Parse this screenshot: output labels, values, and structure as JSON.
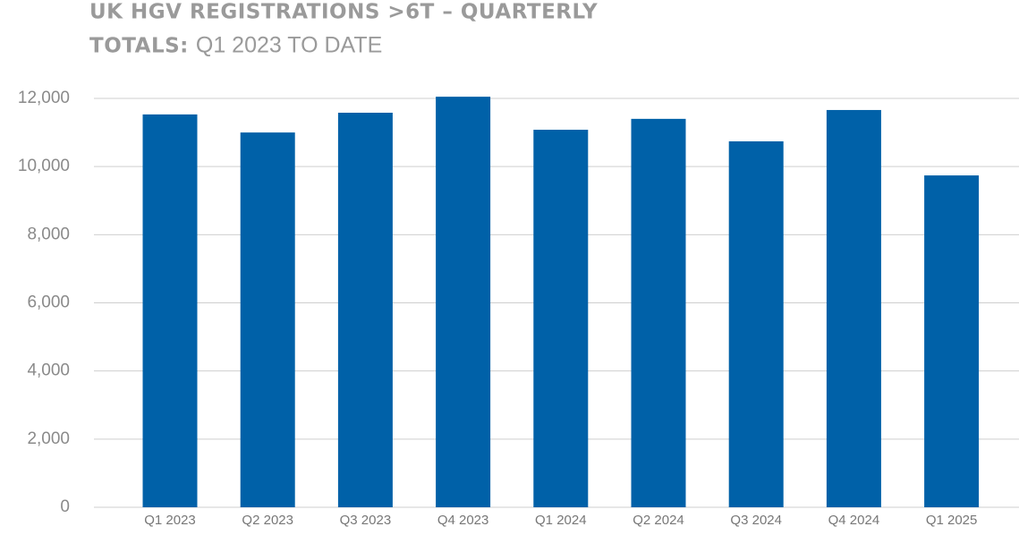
{
  "chart_data": {
    "type": "bar",
    "title": [
      "UK HGV REGISTRATIONS >6T – QUARTERLY",
      "TOTALS:",
      "Q1 2023 TO DATE"
    ],
    "categories": [
      "Q1 2023",
      "Q2 2023",
      "Q3 2023",
      "Q4 2023",
      "Q1 2024",
      "Q2 2024",
      "Q3 2024",
      "Q4 2024",
      "Q1 2025"
    ],
    "values": [
      11530,
      11000,
      11580,
      12050,
      11080,
      11400,
      10740,
      11660,
      9740
    ],
    "color": "#0061a8",
    "ylim": [
      0,
      12000
    ],
    "yticks": [
      0,
      {
        "value": 2000,
        "label": "2,000"
      },
      {
        "value": 4000,
        "label": "4,000"
      },
      {
        "value": 6000,
        "label": "6,000"
      },
      {
        "value": 8000,
        "label": "8,000"
      },
      {
        "value": 10000,
        "label": "10,000"
      },
      {
        "value": 12000,
        "label": "12,000"
      }
    ],
    "grid": true
  }
}
